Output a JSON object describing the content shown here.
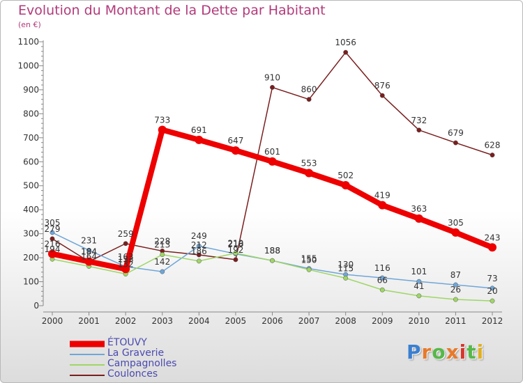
{
  "header": {
    "title": "Evolution du Montant de la Dette par Habitant",
    "subtitle": "(en €)"
  },
  "logo": {
    "text": "Proxiti",
    "letter_colors": [
      "#3a7fd0",
      "#e8792a",
      "#56b848",
      "#e8792a",
      "#d9342b",
      "#56b848",
      "#e0b020"
    ]
  },
  "chart_data": {
    "type": "line",
    "title": "Evolution du Montant de la Dette par Habitant",
    "subtitle": "(en €)",
    "xlabel": "",
    "ylabel": "",
    "x": [
      "2000",
      "2001",
      "2002",
      "2003",
      "2004",
      "2005",
      "2006",
      "2007",
      "2008",
      "2009",
      "2010",
      "2011",
      "2012"
    ],
    "ylim": [
      0,
      1100
    ],
    "yticks": [
      0,
      100,
      200,
      300,
      400,
      500,
      600,
      700,
      800,
      900,
      1000,
      1100
    ],
    "grid": false,
    "legend_position": "bottom-left",
    "series": [
      {
        "name": "ÉTOUVY",
        "color": "#ee0000",
        "values": [
          216,
          184,
          153,
          733,
          691,
          647,
          601,
          553,
          502,
          419,
          363,
          305,
          243
        ],
        "labels": [
          "216",
          "184",
          "153",
          "733",
          "691",
          "647",
          "601",
          "553",
          "502",
          "419",
          "363",
          "305",
          "243"
        ]
      },
      {
        "name": "La Graverie",
        "color": "#6fa6d8",
        "values": [
          305,
          231,
          163,
          142,
          249,
          216,
          188,
          155,
          130,
          116,
          101,
          87,
          73
        ],
        "labels": [
          "305",
          "231",
          "163",
          "142",
          "249",
          "216",
          "188",
          "155",
          "130",
          "116",
          "101",
          "87",
          "73"
        ]
      },
      {
        "name": "Campagnolles",
        "color": "#9ed665",
        "values": [
          194,
          164,
          132,
          213,
          186,
          219,
          188,
          150,
          115,
          66,
          41,
          26,
          20
        ],
        "labels": [
          "194",
          "164",
          "132",
          "213",
          "186",
          "219",
          "188",
          "150",
          "115",
          "66",
          "41",
          "26",
          "20"
        ]
      },
      {
        "name": "Coulonces",
        "color": "#7a1e1e",
        "values": [
          279,
          184,
          259,
          228,
          212,
          192,
          910,
          860,
          1056,
          876,
          732,
          679,
          628
        ],
        "labels": [
          "279",
          "184",
          "259",
          "228",
          "212",
          "192",
          "910",
          "860",
          "1056",
          "876",
          "732",
          "679",
          "628"
        ]
      }
    ]
  }
}
